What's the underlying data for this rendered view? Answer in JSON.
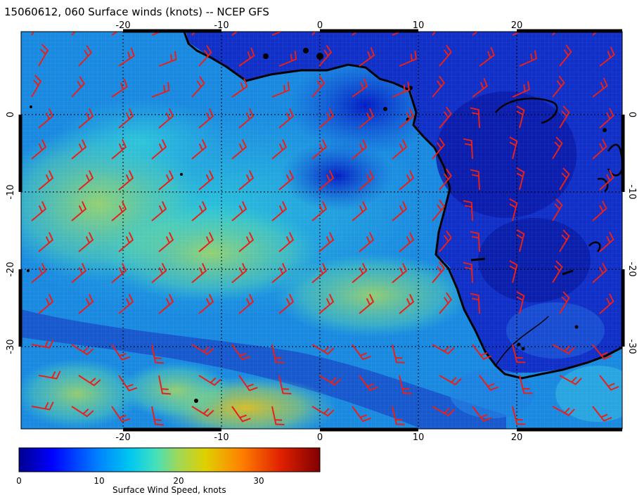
{
  "title": "15060612, 060 Surface winds (knots) -- NCEP GFS",
  "map": {
    "lon_range": [
      -30,
      31
    ],
    "lat_range": [
      -40,
      10
    ],
    "lon_ticks": [
      "-20",
      "-10",
      "0",
      "10",
      "20"
    ],
    "lat_ticks": [
      "0",
      "-10",
      "-20",
      "-30"
    ],
    "grid": "dotted, every 10 degrees",
    "coastline_color": "#000000",
    "barb_color": "#e8201a"
  },
  "colorbar": {
    "label": "Surface Wind Speed, knots",
    "ticks": [
      "0",
      "10",
      "20",
      "30"
    ],
    "range": [
      0,
      38
    ],
    "colors": [
      "#00008f",
      "#0000ff",
      "#0080ff",
      "#00c8f0",
      "#40e0c0",
      "#a0d858",
      "#e0d000",
      "#ff8000",
      "#e02000",
      "#800000"
    ]
  }
}
